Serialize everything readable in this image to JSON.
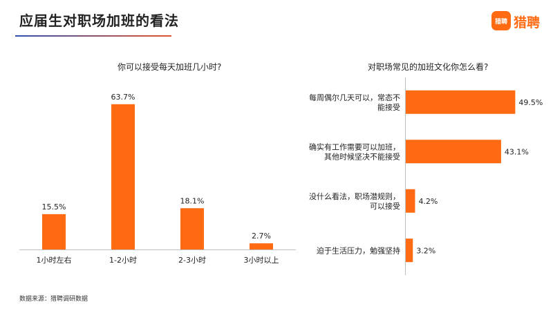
{
  "page": {
    "title": "应届生对职场加班的看法",
    "source": "数据来源：猎聘调研数据",
    "logo": {
      "badge_text": "猎聘",
      "text": "猎聘"
    },
    "accent_color": "#ff6a12"
  },
  "chart_data": [
    {
      "type": "bar",
      "title": "你可以接受每天加班几小时?",
      "categories": [
        "1小时左右",
        "1-2小时",
        "2-3小时",
        "3小时以上"
      ],
      "values": [
        15.5,
        63.7,
        18.1,
        2.7
      ],
      "value_labels": [
        "15.5%",
        "63.7%",
        "18.1%",
        "2.7%"
      ],
      "unit": "%",
      "ylim": [
        0,
        70
      ],
      "grid": false,
      "color": "#ff6a12"
    },
    {
      "type": "bar",
      "orientation": "horizontal",
      "title": "对职场常见的加班文化你怎么看?",
      "categories": [
        [
          "每周偶尔几天可以，常态不",
          "能接受"
        ],
        [
          "确实有工作需要可以加班，",
          "其他时候坚决不能接受"
        ],
        [
          "没什么看法，职场潜规则，",
          "可以接受"
        ],
        [
          "迫于生活压力，勉强坚持"
        ]
      ],
      "values": [
        49.5,
        43.1,
        4.2,
        3.2
      ],
      "value_labels": [
        "49.5%",
        "43.1%",
        "4.2%",
        "3.2%"
      ],
      "unit": "%",
      "xlim": [
        0,
        50
      ],
      "grid": false,
      "color": "#ff6a12"
    }
  ]
}
